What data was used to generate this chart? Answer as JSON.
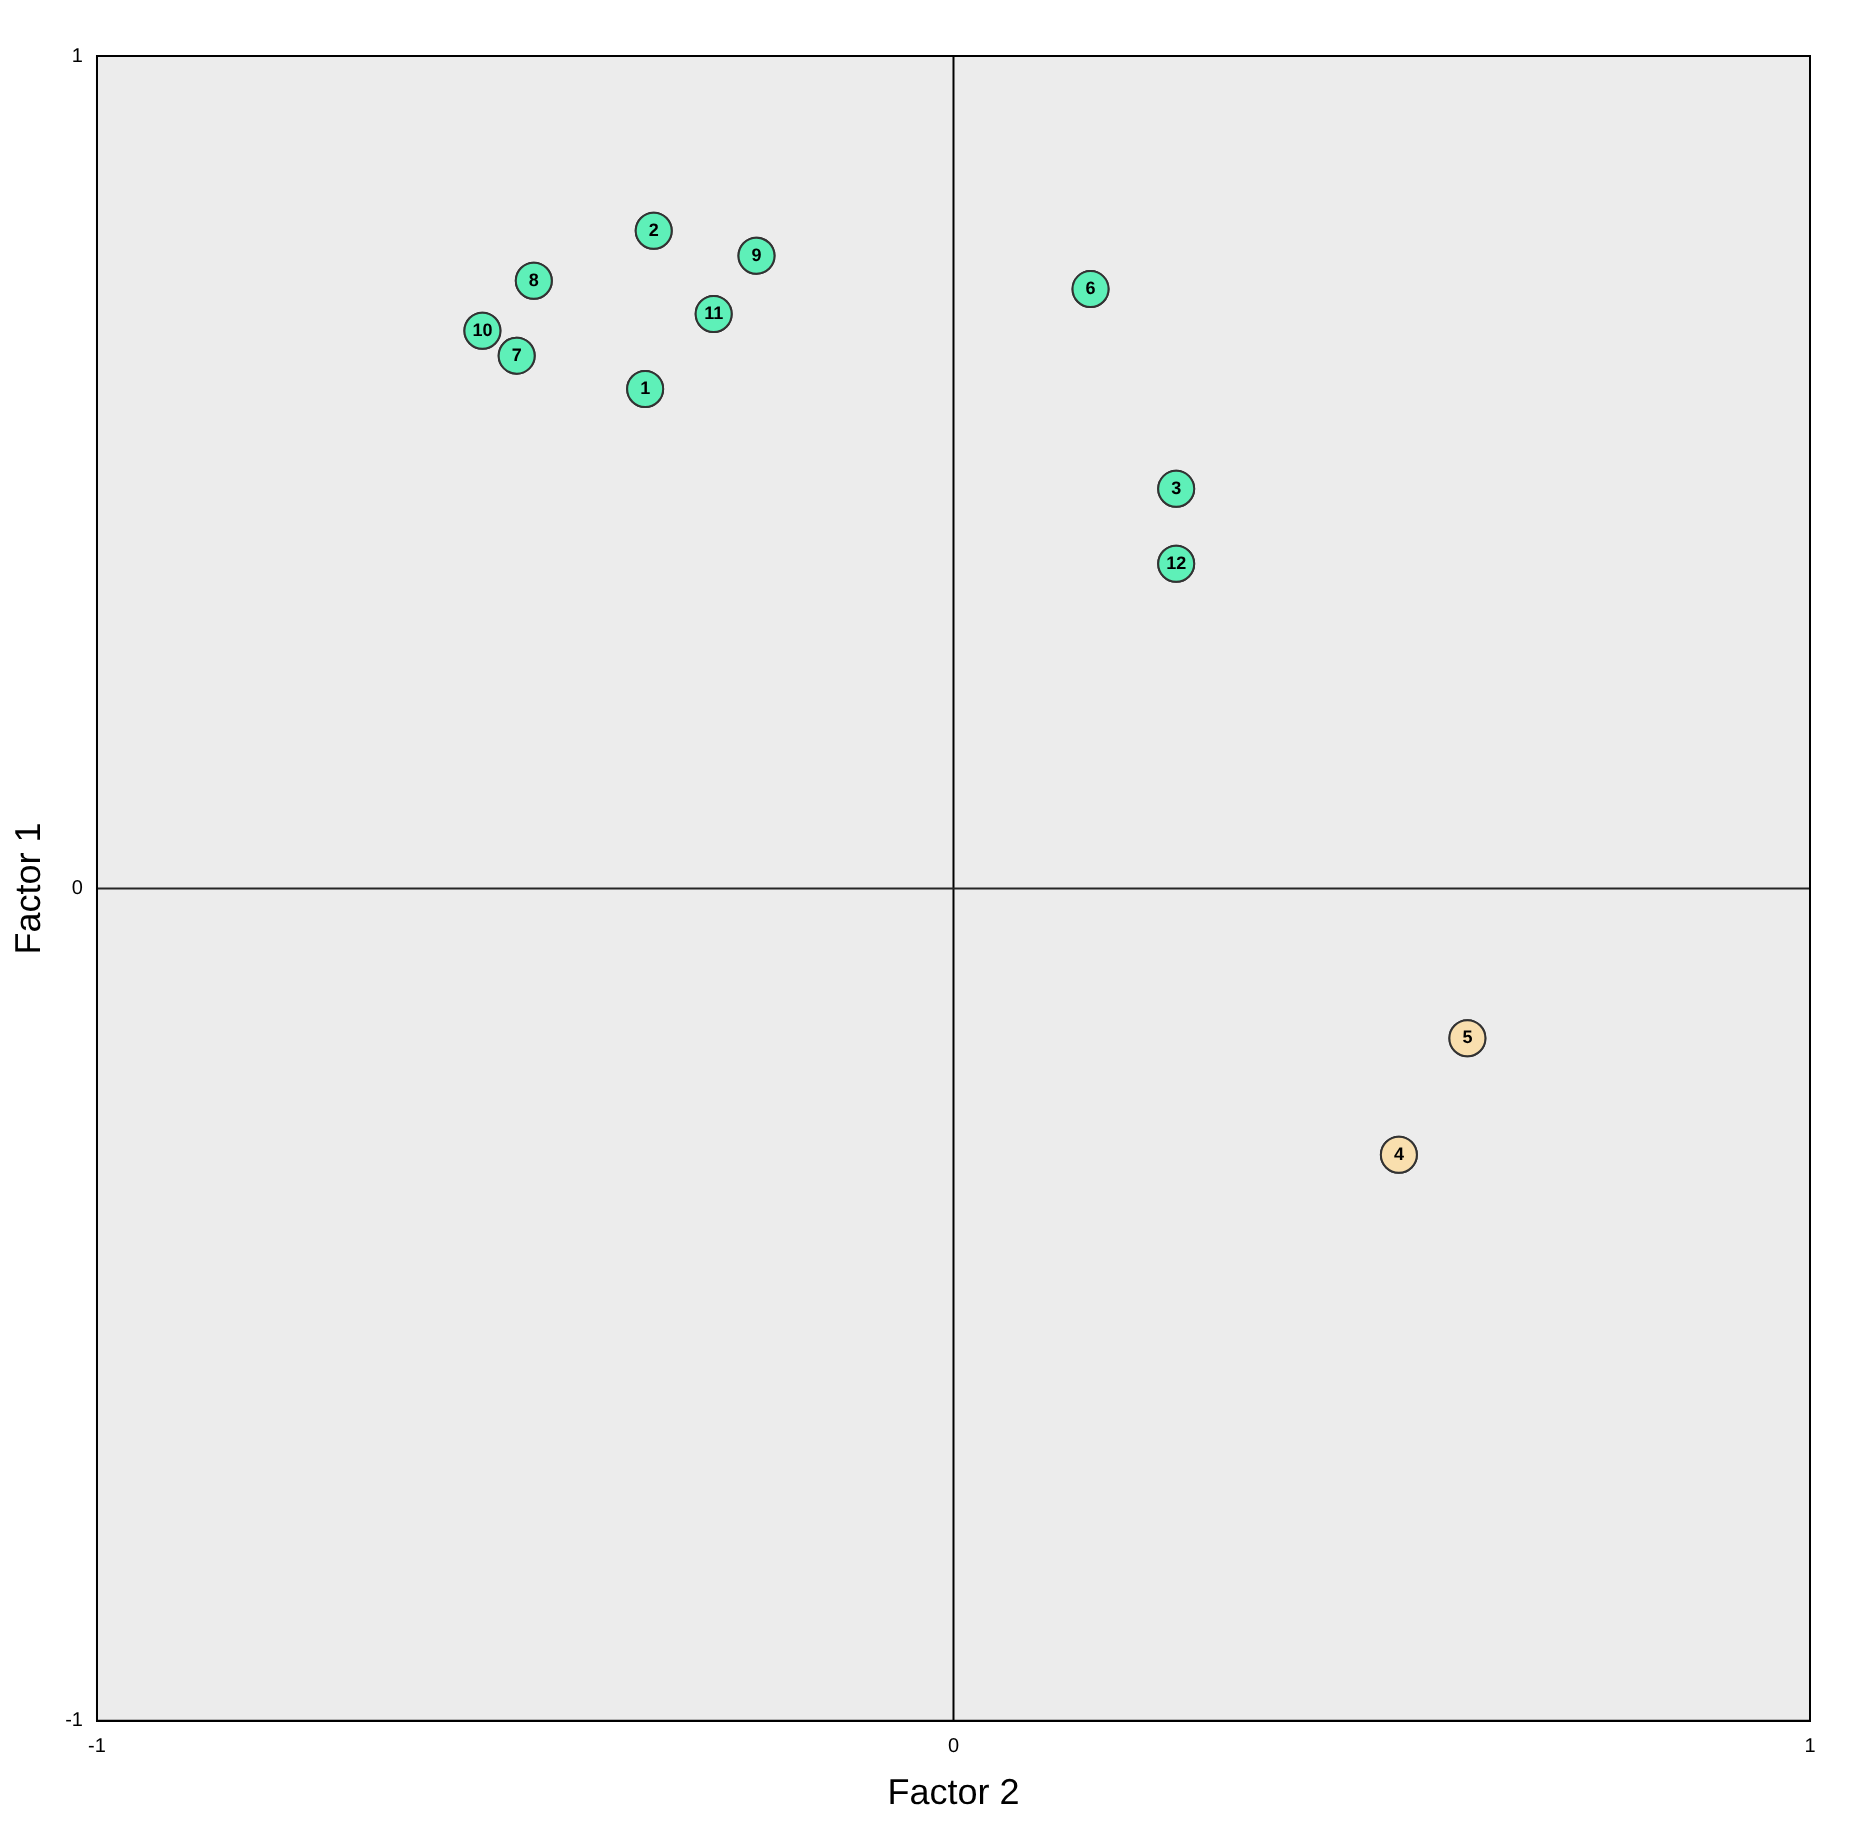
{
  "chart_data": {
    "type": "scatter",
    "xlabel": "Factor 2",
    "ylabel": "Factor 1",
    "series": [
      {
        "color": "#5ef0b8",
        "x": [
          -0.36,
          -0.35,
          0.26,
          0.16,
          -0.51,
          -0.49,
          -0.23,
          -0.55,
          -0.28,
          0.26
        ],
        "values": [
          0.6,
          0.79,
          0.48,
          0.72,
          0.64,
          0.73,
          0.76,
          0.67,
          0.69,
          0.39
        ]
      },
      {
        "color": "#f9dfae",
        "x": [
          0.52,
          0.6
        ],
        "values": [
          -0.32,
          -0.18
        ]
      }
    ],
    "annotations": [
      {
        "text": "1",
        "x": -0.36,
        "y": 0.6
      },
      {
        "text": "2",
        "x": -0.35,
        "y": 0.79
      },
      {
        "text": "3",
        "x": 0.26,
        "y": 0.48
      },
      {
        "text": "6",
        "x": 0.16,
        "y": 0.72
      },
      {
        "text": "7",
        "x": -0.51,
        "y": 0.64
      },
      {
        "text": "8",
        "x": -0.49,
        "y": 0.73
      },
      {
        "text": "9",
        "x": -0.23,
        "y": 0.76
      },
      {
        "text": "10",
        "x": -0.55,
        "y": 0.67
      },
      {
        "text": "11",
        "x": -0.28,
        "y": 0.69
      },
      {
        "text": "12",
        "x": 0.26,
        "y": 0.39
      },
      {
        "text": "4",
        "x": 0.52,
        "y": -0.32
      },
      {
        "text": "5",
        "x": 0.6,
        "y": -0.18
      }
    ],
    "ref_lines": [
      {
        "axis": "x",
        "value": 0,
        "color": "#000000"
      },
      {
        "axis": "y",
        "value": 0,
        "color": "#262626"
      }
    ],
    "xlim": [
      -1,
      1
    ],
    "ylim": [
      -1,
      1
    ],
    "xticks": [
      -1,
      0,
      1
    ],
    "yticks": [
      -1,
      0,
      1
    ],
    "grid": false,
    "legend": false,
    "marker": "circle"
  }
}
